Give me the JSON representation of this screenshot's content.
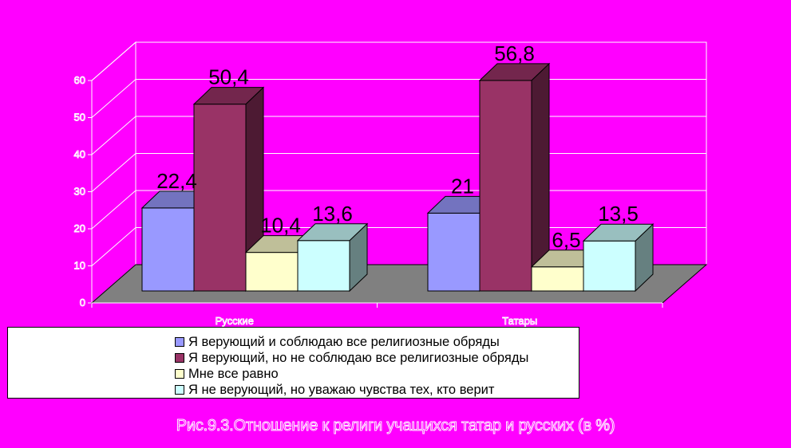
{
  "chart_data": {
    "type": "bar",
    "categories": [
      "Русские",
      "Татары"
    ],
    "series": [
      {
        "name": "Я верующий и соблюдаю все религиозные обряды",
        "values": [
          22.4,
          21
        ],
        "labels": [
          "22,4",
          "21"
        ],
        "color": "#9999ff"
      },
      {
        "name": "Я верующий, но не соблюдаю все религиозные обряды",
        "values": [
          50.4,
          56.8
        ],
        "labels": [
          "50,4",
          "56,8"
        ],
        "color": "#993366"
      },
      {
        "name": "Мне все равно",
        "values": [
          10.4,
          6.5
        ],
        "labels": [
          "10,4",
          "6,5"
        ],
        "color": "#ffffcc"
      },
      {
        "name": "Я не верующий, но уважаю чувства тех, кто верит",
        "values": [
          13.6,
          13.5
        ],
        "labels": [
          "13,6",
          "13,5"
        ],
        "color": "#ccffff"
      }
    ],
    "yticks": [
      "0",
      "10",
      "20",
      "30",
      "40",
      "50",
      "60"
    ],
    "ylim": [
      0,
      60
    ],
    "grid": true,
    "floor_color": "#808080",
    "legend_position": "bottom",
    "caption": "Рис.9.3.Отношение к религи учащихся татар и русских (в %)"
  }
}
